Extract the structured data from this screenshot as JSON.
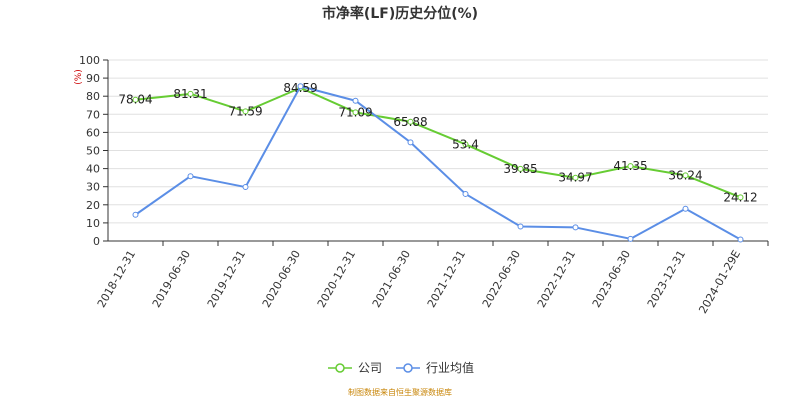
{
  "chart_data": {
    "type": "line",
    "title": "市净率(LF)历史分位(%)",
    "ylabel_unit": "(%)",
    "ylim": [
      0,
      100
    ],
    "yticks": [
      0,
      10,
      20,
      30,
      40,
      50,
      60,
      70,
      80,
      90,
      100
    ],
    "grid": true,
    "legend_position": "bottom-center",
    "categories": [
      "2018-12-31",
      "2019-06-30",
      "2019-12-31",
      "2020-06-30",
      "2020-12-31",
      "2021-06-30",
      "2021-12-31",
      "2022-06-30",
      "2022-12-31",
      "2023-06-30",
      "2023-12-31",
      "2024-01-29E"
    ],
    "series": [
      {
        "name": "公司",
        "color": "#66cc33",
        "values": [
          78.04,
          81.31,
          71.59,
          84.59,
          71.09,
          65.88,
          53.4,
          39.85,
          34.97,
          41.35,
          36.24,
          24.12
        ],
        "labels": [
          "78.04",
          "81.31",
          "71.59",
          "84.59",
          "71.09",
          "65.88",
          "53.4",
          "39.85",
          "34.97",
          "41.35",
          "36.24",
          "24.12"
        ]
      },
      {
        "name": "行业均值",
        "color": "#5b8ee6",
        "values": [
          14.5,
          35.8,
          29.8,
          85.5,
          77.5,
          54.5,
          26.0,
          8.0,
          7.5,
          1.2,
          17.8,
          0.8
        ]
      }
    ]
  },
  "source": "制图数据来自恒生聚源数据库"
}
